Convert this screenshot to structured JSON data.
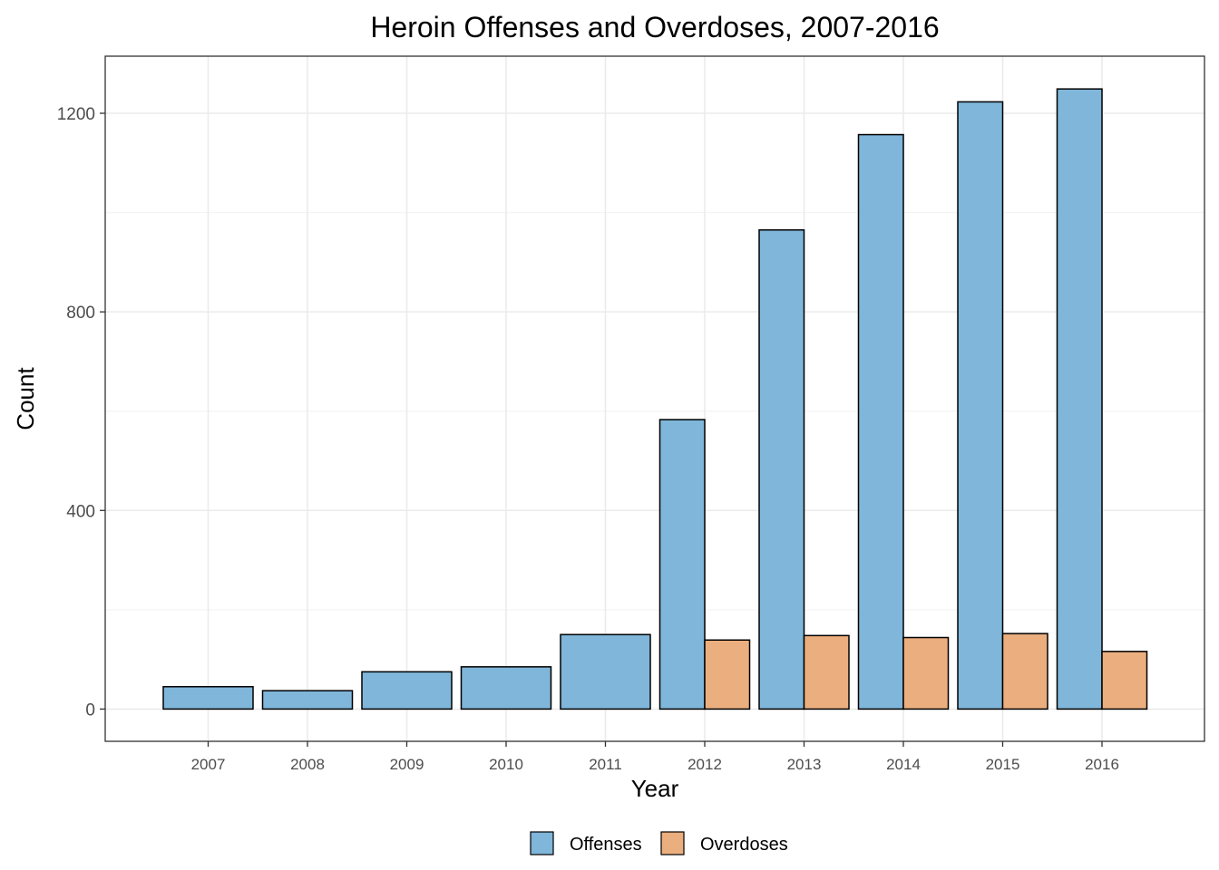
{
  "chart_data": {
    "type": "bar",
    "title": "Heroin Offenses and Overdoses, 2007-2016",
    "xlabel": "Year",
    "ylabel": "Count",
    "categories": [
      "2007",
      "2008",
      "2009",
      "2010",
      "2011",
      "2012",
      "2013",
      "2014",
      "2015",
      "2016"
    ],
    "series": [
      {
        "name": "Offenses",
        "color": "#7fb6d9",
        "values": [
          45,
          37,
          75,
          85,
          150,
          583,
          965,
          1157,
          1223,
          1249
        ]
      },
      {
        "name": "Overdoses",
        "color": "#ebae7e",
        "values": [
          null,
          null,
          null,
          null,
          null,
          139,
          148,
          144,
          152,
          116
        ]
      }
    ],
    "ylim": [
      -65,
      1315
    ],
    "yticks": [
      0,
      400,
      800,
      1200
    ],
    "grid": true,
    "legend_position": "bottom"
  }
}
